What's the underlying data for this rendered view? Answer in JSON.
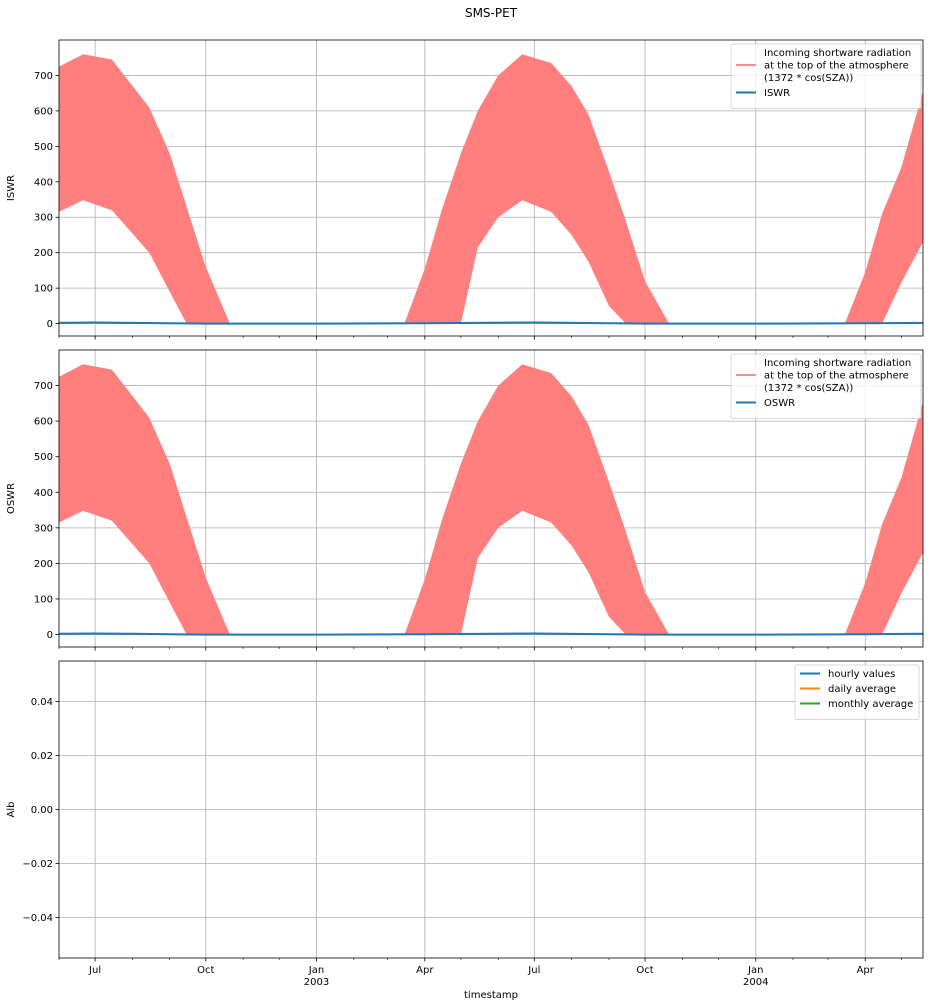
{
  "figure": {
    "suptitle": "SMS-PET",
    "xlabel": "timestamp"
  },
  "colors": {
    "toa_band": "#ff7f7f",
    "toa_line": "#ff8c8c",
    "series_blue": "#1f77b4",
    "series_orange": "#ff7f0e",
    "series_green": "#2ca02c",
    "grid": "#b0b0b0"
  },
  "x_axis": {
    "range": [
      "2002-06-01",
      "2004-05-19"
    ],
    "major_ticks": [
      {
        "date": "2002-07-01",
        "label": "Jul",
        "sub": ""
      },
      {
        "date": "2002-10-01",
        "label": "Oct",
        "sub": ""
      },
      {
        "date": "2003-01-01",
        "label": "Jan",
        "sub": "2003"
      },
      {
        "date": "2003-04-01",
        "label": "Apr",
        "sub": ""
      },
      {
        "date": "2003-07-01",
        "label": "Jul",
        "sub": ""
      },
      {
        "date": "2003-10-01",
        "label": "Oct",
        "sub": ""
      },
      {
        "date": "2004-01-01",
        "label": "Jan",
        "sub": "2004"
      },
      {
        "date": "2004-04-01",
        "label": "Apr",
        "sub": ""
      }
    ],
    "minor_ticks": [
      "2002-06-01",
      "2002-08-01",
      "2002-09-01",
      "2002-11-01",
      "2002-12-01",
      "2003-02-01",
      "2003-03-01",
      "2003-05-01",
      "2003-06-01",
      "2003-08-01",
      "2003-09-01",
      "2003-11-01",
      "2003-12-01",
      "2004-02-01",
      "2004-03-01",
      "2004-05-01"
    ]
  },
  "chart_data": [
    {
      "type": "area",
      "ylabel": "ISWR",
      "ylim": [
        -35,
        800
      ],
      "yticks": [
        0,
        100,
        200,
        300,
        400,
        500,
        600,
        700
      ],
      "grid": true,
      "legend_placement": "top-right",
      "series": [
        {
          "name": "Incoming shortware radiation\nat the top of the atmosphere\n(1372 * cos(SZA))",
          "kind": "band",
          "x": [
            "2002-06-01",
            "2002-06-21",
            "2002-07-15",
            "2002-08-15",
            "2002-09-01",
            "2002-09-15",
            "2002-10-01",
            "2002-10-21",
            "2003-03-15",
            "2003-04-01",
            "2003-04-15",
            "2003-05-01",
            "2003-05-15",
            "2003-06-01",
            "2003-06-21",
            "2003-07-15",
            "2003-08-01",
            "2003-08-15",
            "2003-09-01",
            "2003-09-15",
            "2003-10-01",
            "2003-10-21",
            "2004-03-15",
            "2004-04-01",
            "2004-04-15",
            "2004-05-01",
            "2004-05-19"
          ],
          "low": [
            315,
            348,
            320,
            200,
            90,
            0,
            0,
            0,
            0,
            0,
            0,
            0,
            215,
            300,
            348,
            315,
            250,
            175,
            50,
            0,
            0,
            0,
            0,
            0,
            0,
            115,
            230
          ],
          "high": [
            725,
            760,
            745,
            610,
            480,
            330,
            160,
            0,
            0,
            155,
            320,
            480,
            600,
            700,
            760,
            735,
            670,
            590,
            430,
            290,
            120,
            0,
            0,
            145,
            310,
            440,
            655
          ]
        },
        {
          "name": "ISWR",
          "kind": "line",
          "x": [
            "2002-06-01",
            "2002-07-01",
            "2002-08-01",
            "2002-09-01",
            "2002-10-01",
            "2003-01-01",
            "2003-04-01",
            "2003-07-01",
            "2003-10-01",
            "2004-01-01",
            "2004-04-01",
            "2004-05-19"
          ],
          "y": [
            2,
            3,
            2,
            1,
            0,
            0,
            1,
            3,
            0,
            0,
            1,
            2
          ]
        }
      ]
    },
    {
      "type": "area",
      "ylabel": "OSWR",
      "ylim": [
        -35,
        800
      ],
      "yticks": [
        0,
        100,
        200,
        300,
        400,
        500,
        600,
        700
      ],
      "grid": true,
      "legend_placement": "top-right",
      "series": [
        {
          "name": "Incoming shortware radiation\nat the top of the atmosphere\n(1372 * cos(SZA))",
          "kind": "band",
          "x": [
            "2002-06-01",
            "2002-06-21",
            "2002-07-15",
            "2002-08-15",
            "2002-09-01",
            "2002-09-15",
            "2002-10-01",
            "2002-10-21",
            "2003-03-15",
            "2003-04-01",
            "2003-04-15",
            "2003-05-01",
            "2003-05-15",
            "2003-06-01",
            "2003-06-21",
            "2003-07-15",
            "2003-08-01",
            "2003-08-15",
            "2003-09-01",
            "2003-09-15",
            "2003-10-01",
            "2003-10-21",
            "2004-03-15",
            "2004-04-01",
            "2004-04-15",
            "2004-05-01",
            "2004-05-19"
          ],
          "low": [
            315,
            348,
            320,
            200,
            90,
            0,
            0,
            0,
            0,
            0,
            0,
            0,
            215,
            300,
            348,
            315,
            250,
            175,
            50,
            0,
            0,
            0,
            0,
            0,
            0,
            115,
            230
          ],
          "high": [
            725,
            760,
            745,
            610,
            480,
            330,
            160,
            0,
            0,
            155,
            320,
            480,
            600,
            700,
            760,
            735,
            670,
            590,
            430,
            290,
            120,
            0,
            0,
            145,
            310,
            440,
            655
          ]
        },
        {
          "name": "OSWR",
          "kind": "line",
          "x": [
            "2002-06-01",
            "2002-07-01",
            "2002-08-01",
            "2002-09-01",
            "2002-10-01",
            "2003-01-01",
            "2003-04-01",
            "2003-07-01",
            "2003-10-01",
            "2004-01-01",
            "2004-04-01",
            "2004-05-19"
          ],
          "y": [
            2,
            3,
            2,
            1,
            0,
            0,
            1,
            3,
            0,
            0,
            1,
            2
          ]
        }
      ]
    },
    {
      "type": "line",
      "ylabel": "Alb",
      "ylim": [
        -0.055,
        0.055
      ],
      "yticks": [
        -0.04,
        -0.02,
        0.0,
        0.02,
        0.04
      ],
      "ytick_labels": [
        "−0.04",
        "−0.02",
        "0.00",
        "0.02",
        "0.04"
      ],
      "grid": true,
      "legend_placement": "top-right",
      "series": [
        {
          "name": "hourly values",
          "kind": "line",
          "x": [],
          "y": []
        },
        {
          "name": "daily average",
          "kind": "line",
          "x": [],
          "y": []
        },
        {
          "name": "monthly average",
          "kind": "line",
          "x": [],
          "y": []
        }
      ]
    }
  ]
}
